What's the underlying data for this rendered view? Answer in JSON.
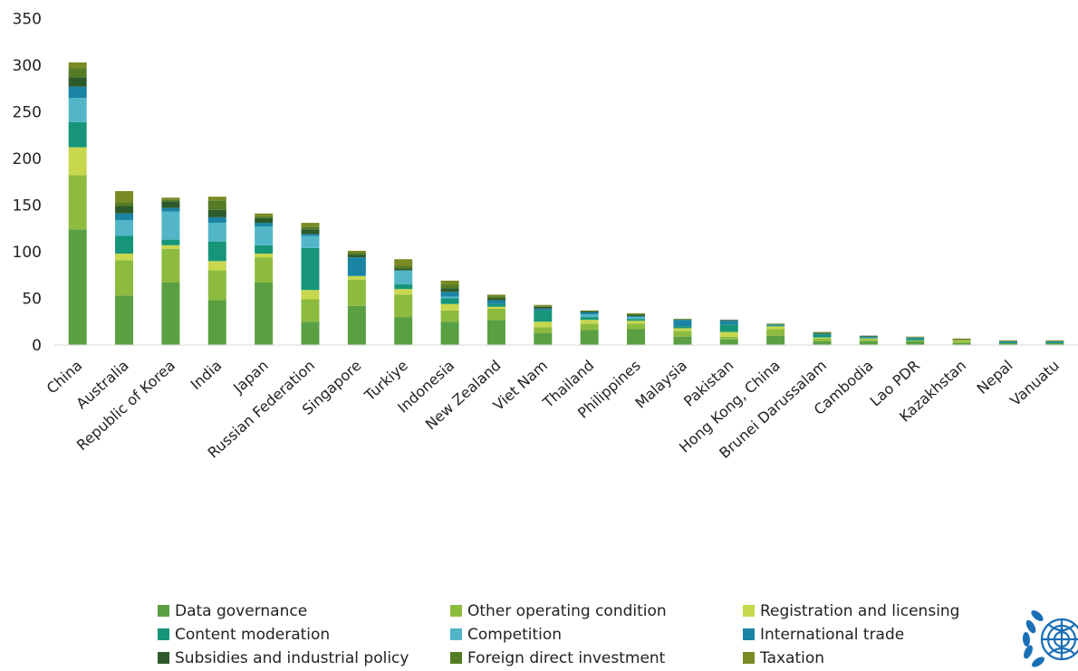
{
  "chart_data": {
    "type": "bar",
    "stacked": true,
    "title": "",
    "xlabel": "",
    "ylabel": "",
    "ylim": [
      0,
      350
    ],
    "yticks": [
      0,
      50,
      100,
      150,
      200,
      250,
      300,
      350
    ],
    "grid": false,
    "legend_position": "bottom",
    "categories": [
      "China",
      "Australia",
      "Republic of Korea",
      "India",
      "Japan",
      "Russian Federation",
      "Singapore",
      "Turkiye",
      "Indonesia",
      "New Zealand",
      "Viet Nam",
      "Thailand",
      "Philippines",
      "Malaysia",
      "Pakistan",
      "Hong Kong, China",
      "Brunei Darussalam",
      "Cambodia",
      "Lao PDR",
      "Kazakhstan",
      "Nepal",
      "Vanuatu"
    ],
    "series": [
      {
        "name": "Data governance",
        "color": "#5aa043",
        "values": [
          124,
          53,
          67,
          48,
          67,
          25,
          42,
          30,
          25,
          27,
          13,
          16,
          17,
          9,
          6,
          10,
          4,
          4,
          4,
          2,
          2,
          2
        ]
      },
      {
        "name": "Other operating condition",
        "color": "#8dbb3e",
        "values": [
          58,
          38,
          36,
          32,
          27,
          24,
          28,
          24,
          12,
          12,
          6,
          7,
          6,
          6,
          3,
          7,
          3,
          2,
          1,
          2,
          0,
          0
        ]
      },
      {
        "name": "Registration and licensing",
        "color": "#c7d84d",
        "values": [
          30,
          7,
          4,
          10,
          4,
          10,
          4,
          6,
          7,
          2,
          6,
          4,
          3,
          3,
          5,
          3,
          1,
          1,
          0,
          1,
          0,
          0
        ]
      },
      {
        "name": "Content moderation",
        "color": "#16957a",
        "values": [
          27,
          19,
          6,
          21,
          9,
          45,
          0,
          5,
          6,
          3,
          12,
          3,
          2,
          2,
          8,
          1,
          3,
          1,
          2,
          0,
          1,
          1
        ]
      },
      {
        "name": "Competition",
        "color": "#52b6c8",
        "values": [
          26,
          17,
          30,
          20,
          20,
          13,
          0,
          15,
          2,
          0,
          0,
          3,
          2,
          0,
          0,
          0,
          0,
          0,
          0,
          0,
          0,
          0
        ]
      },
      {
        "name": "International trade",
        "color": "#1a84a5",
        "values": [
          12,
          7,
          4,
          6,
          4,
          2,
          20,
          0,
          5,
          4,
          2,
          2,
          1,
          7,
          4,
          1,
          1,
          1,
          1,
          0,
          1,
          1
        ]
      },
      {
        "name": "Subsidies and industrial policy",
        "color": "#2d5a2a",
        "values": [
          10,
          8,
          7,
          8,
          5,
          5,
          3,
          2,
          4,
          2,
          2,
          1,
          1,
          0,
          1,
          0,
          1,
          1,
          0,
          0,
          0,
          0
        ]
      },
      {
        "name": "Foreign direct investment",
        "color": "#557c25",
        "values": [
          10,
          4,
          2,
          10,
          2,
          3,
          2,
          3,
          4,
          2,
          1,
          1,
          1,
          1,
          0,
          0,
          0,
          0,
          0,
          1,
          0,
          0
        ]
      },
      {
        "name": "Taxation",
        "color": "#7a8a25",
        "values": [
          6,
          12,
          2,
          4,
          3,
          4,
          2,
          7,
          4,
          2,
          1,
          0,
          1,
          0,
          0,
          1,
          1,
          0,
          1,
          1,
          1,
          1
        ]
      }
    ]
  }
}
